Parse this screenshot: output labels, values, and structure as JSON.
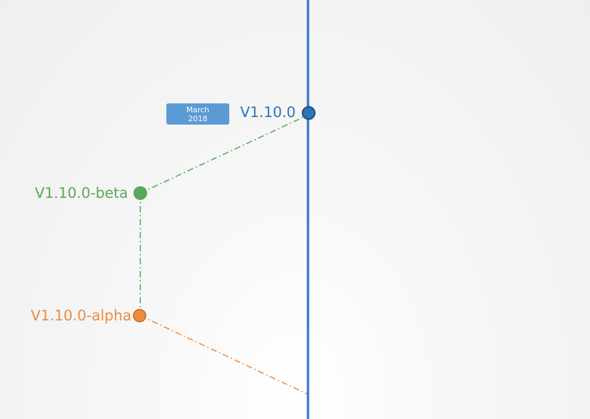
{
  "timeline": {
    "axis_color": "#3a7bc8",
    "date_badge": {
      "month": "March",
      "year": "2018",
      "color": "#5b9bd5"
    },
    "milestones": [
      {
        "id": "release",
        "label": "V1.10.0",
        "color": "#2e75b6"
      },
      {
        "id": "beta",
        "label": "V1.10.0-beta",
        "color": "#5aa85a"
      },
      {
        "id": "alpha",
        "label": "V1.10.0-alpha",
        "color": "#ed8b3e"
      }
    ]
  }
}
